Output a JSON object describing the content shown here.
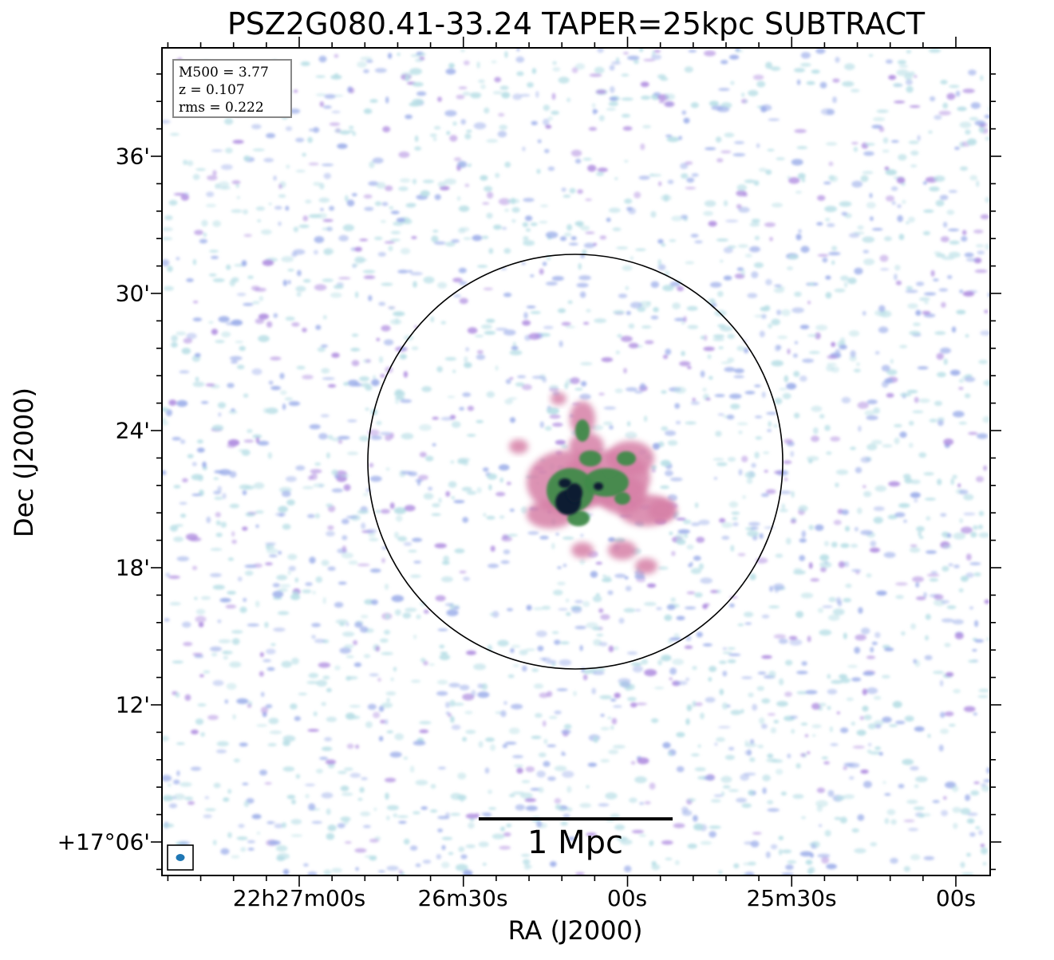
{
  "title": "PSZ2G080.41-33.24 TAPER=25kpc SUBTRACT",
  "axes": {
    "xlabel": "RA (J2000)",
    "ylabel": "Dec (J2000)",
    "xticks": [
      "22h27m00s",
      "26m30s",
      "00s",
      "25m30s",
      "00s"
    ],
    "yticks": [
      "36'",
      "30'",
      "24'",
      "18'",
      "12'",
      "+17°06'"
    ]
  },
  "infobox": {
    "line1": "M500 = 3.77",
    "line2": "z = 0.107",
    "line3": "rms = 0.222"
  },
  "scalebar": {
    "label": "1 Mpc"
  },
  "colors": {
    "noise_light": "#b9dfe6",
    "noise_blue": "#9fb0ea",
    "noise_purple": "#b08ee0",
    "emission_pink": "#d67fa6",
    "emission_green": "#3f8a4a",
    "emission_dark": "#0d1f33",
    "beam": "#1f77b4"
  },
  "icons": {
    "beam": "beam-ellipse-icon",
    "circle": "r500-circle"
  }
}
